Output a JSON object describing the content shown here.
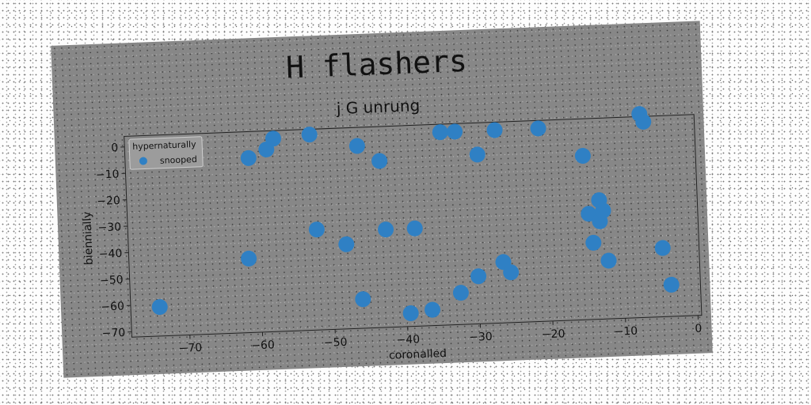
{
  "chart_data": {
    "type": "scatter",
    "title": "H flashers",
    "subtitle": "j G unrung",
    "xlabel": "coronalled",
    "ylabel": "biennially",
    "xlim": [
      -78,
      0.5
    ],
    "ylim": [
      -72,
      4
    ],
    "xticks": [
      -70,
      -60,
      -50,
      -40,
      -30,
      -20,
      -10,
      0
    ],
    "yticks": [
      0,
      -10,
      -20,
      -30,
      -40,
      -50,
      -60,
      -70
    ],
    "legend": {
      "title": "hypernaturally",
      "placement": "top-left"
    },
    "series": [
      {
        "name": "snooped",
        "color": "#2f80c4",
        "points": [
          [
            -74,
            -61
          ],
          [
            -61,
            -6
          ],
          [
            -61.5,
            -44
          ],
          [
            -58.5,
            -3
          ],
          [
            -57.5,
            1
          ],
          [
            -52.5,
            2
          ],
          [
            -52,
            -34
          ],
          [
            -48,
            -40
          ],
          [
            -46,
            -3
          ],
          [
            -46,
            -61
          ],
          [
            -43,
            -9
          ],
          [
            -42.5,
            -35
          ],
          [
            -38.5,
            -35
          ],
          [
            -39.5,
            -67
          ],
          [
            -36.5,
            -66
          ],
          [
            -34.5,
            1
          ],
          [
            -32.5,
            1
          ],
          [
            -32.5,
            -60
          ],
          [
            -30,
            -54
          ],
          [
            -29.5,
            -8
          ],
          [
            -27,
            1
          ],
          [
            -26.5,
            -49
          ],
          [
            -25.5,
            -53
          ],
          [
            -21,
            1
          ],
          [
            -15,
            -10
          ],
          [
            -14.5,
            -32
          ],
          [
            -14,
            -43
          ],
          [
            -13,
            -27
          ],
          [
            -13,
            -35
          ],
          [
            -12.5,
            -31
          ],
          [
            -12,
            -50
          ],
          [
            -7,
            5
          ],
          [
            -6.5,
            2
          ],
          [
            -4.5,
            -46
          ],
          [
            -3.5,
            -60
          ]
        ]
      }
    ]
  }
}
